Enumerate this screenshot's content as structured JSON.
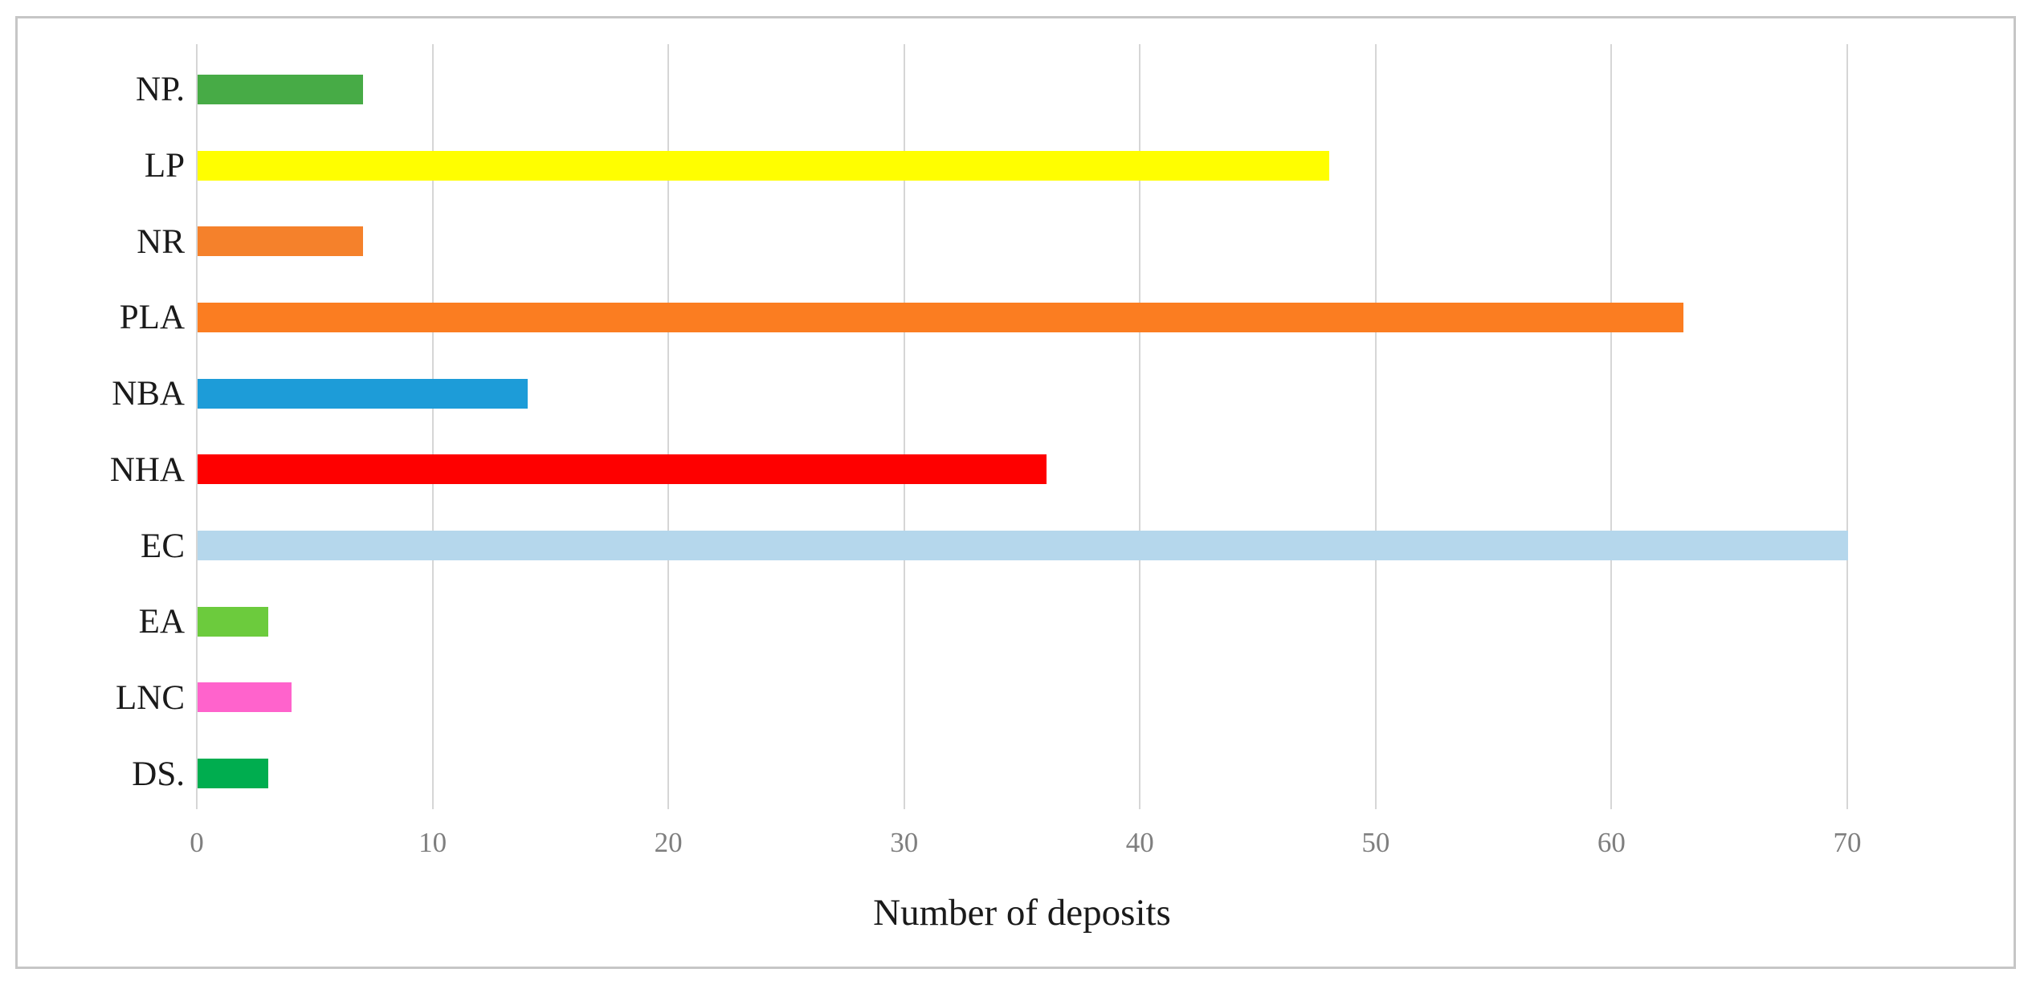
{
  "figure": {
    "background_color": "#ffffff",
    "border_color": "#c6c6c6"
  },
  "chart_data": {
    "type": "bar",
    "orientation": "horizontal",
    "title": "",
    "xlabel": "Number of deposits",
    "ylabel": "",
    "categories": [
      "NP.",
      "LP",
      "NR",
      "PLA",
      "NBA",
      "NHA",
      "EC",
      "EA",
      "LNC",
      "DS."
    ],
    "values": [
      7,
      48,
      7,
      63,
      14,
      36,
      70,
      3,
      4,
      3
    ],
    "bar_colors": [
      "#47ab46",
      "#fffe00",
      "#f5812b",
      "#fb7d21",
      "#1d9cd8",
      "#fe0000",
      "#b5d7ec",
      "#6ccb3d",
      "#ff63cc",
      "#00ad4f"
    ],
    "xlim": [
      0,
      70
    ],
    "xticks": [
      0,
      10,
      20,
      30,
      40,
      50,
      60,
      70
    ],
    "grid": true,
    "gridline_color": "#d6d6d6",
    "tick_label_color": "#7f7f7f",
    "category_label_color": "#1a1a1a",
    "axis_title_color": "#1a1a1a",
    "legend": "none"
  }
}
